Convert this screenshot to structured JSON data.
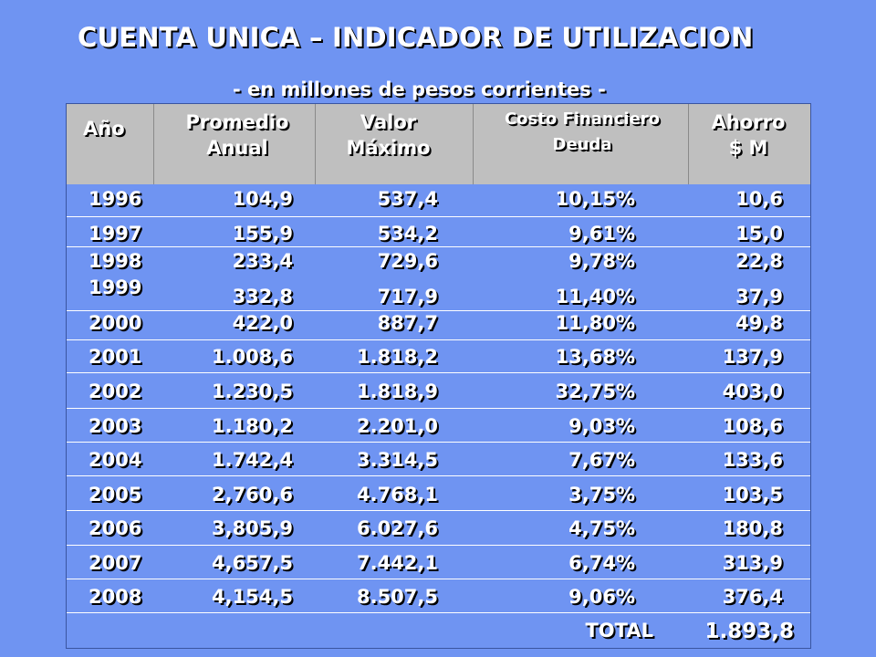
{
  "title": "CUENTA UNICA – INDICADOR DE UTILIZACION",
  "subtitle": "- en millones de pesos corrientes -",
  "headers": {
    "year": "Año",
    "avg_line1": "Promedio",
    "avg_line2": "Anual",
    "max_line1": "Valor",
    "max_line2": "Máximo",
    "cost_line1": "Costo Financiero",
    "cost_line2": "Deuda",
    "save_line1": "Ahorro",
    "save_line2": "$ M"
  },
  "rows": [
    {
      "year": "1996",
      "avg": "104,9",
      "max": "537,4",
      "cost": "10,15%",
      "save": "10,6"
    },
    {
      "year": "1997",
      "avg": "155,9",
      "max": "534,2",
      "cost": "9,61%",
      "save": "15,0"
    },
    {
      "year": "1998",
      "avg": "233,4",
      "max": "729,6",
      "cost": "9,78%",
      "save": "22,8"
    },
    {
      "year": "1999",
      "avg": "332,8",
      "max": "717,9",
      "cost": "11,40%",
      "save": "37,9"
    },
    {
      "year": "2000",
      "avg": "422,0",
      "max": "887,7",
      "cost": "11,80%",
      "save": "49,8"
    },
    {
      "year": "2001",
      "avg": "1.008,6",
      "max": "1.818,2",
      "cost": "13,68%",
      "save": "137,9"
    },
    {
      "year": "2002",
      "avg": "1.230,5",
      "max": "1.818,9",
      "cost": "32,75%",
      "save": "403,0"
    },
    {
      "year": "2003",
      "avg": "1.180,2",
      "max": "2.201,0",
      "cost": "9,03%",
      "save": "108,6"
    },
    {
      "year": "2004",
      "avg": "1.742,4",
      "max": "3.314,5",
      "cost": "7,67%",
      "save": "133,6"
    },
    {
      "year": "2005",
      "avg": "2,760,6",
      "max": "4.768,1",
      "cost": "3,75%",
      "save": "103,5"
    },
    {
      "year": "2006",
      "avg": "3,805,9",
      "max": "6.027,6",
      "cost": "4,75%",
      "save": "180,8"
    },
    {
      "year": "2007",
      "avg": "4,657,5",
      "max": "7.442,1",
      "cost": "6,74%",
      "save": "313,9"
    },
    {
      "year": "2008",
      "avg": "4,154,5",
      "max": "8.507,5",
      "cost": "9,06%",
      "save": "376,4"
    }
  ],
  "total": {
    "label": "TOTAL",
    "value": "1.893,8"
  }
}
